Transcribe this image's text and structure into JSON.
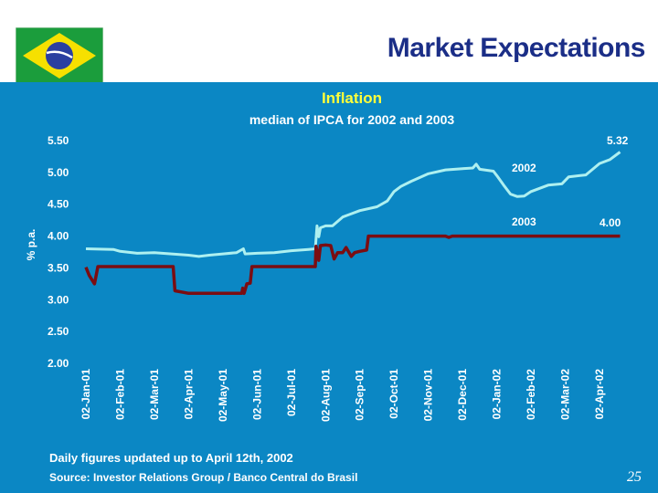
{
  "slide": {
    "title": "Market Expectations",
    "subtitle": "Inflation",
    "caption": "median of IPCA for 2002 and 2003",
    "note": "Daily figures updated up to April 12th, 2002",
    "source": "Source: Investor Relations Group / Banco Central do Brasil",
    "page_number": "25",
    "flag_icon": "brazil-flag-icon"
  },
  "colors": {
    "background": "#0b87c4",
    "series_2002": "#aef0f0",
    "series_2003": "#7b0d12",
    "title": "#1b2e87",
    "subtitle": "#ffff3a"
  },
  "chart_data": {
    "type": "line",
    "title": "Inflation",
    "subtitle": "median of IPCA for 2002 and 2003",
    "ylabel": "% p.a.",
    "xlabel": "",
    "ylim": [
      2.0,
      5.5
    ],
    "y_ticks": [
      "5.50",
      "5.00",
      "4.50",
      "4.00",
      "3.50",
      "3.00",
      "2.50",
      "2.00"
    ],
    "categories": [
      "02-Jan-01",
      "02-Feb-01",
      "02-Mar-01",
      "02-Apr-01",
      "02-May-01",
      "02-Jun-01",
      "02-Jul-01",
      "02-Aug-01",
      "02-Sep-01",
      "02-Oct-01",
      "02-Nov-01",
      "02-Dec-01",
      "02-Jan-02",
      "02-Feb-02",
      "02-Mar-02",
      "02-Apr-02"
    ],
    "grid": false,
    "series": [
      {
        "name": "2002",
        "end_label": "5.32",
        "points": [
          [
            0.0,
            3.8
          ],
          [
            0.8,
            3.79
          ],
          [
            1.0,
            3.76
          ],
          [
            1.5,
            3.73
          ],
          [
            2.0,
            3.74
          ],
          [
            2.5,
            3.72
          ],
          [
            3.0,
            3.7
          ],
          [
            3.3,
            3.68
          ],
          [
            3.6,
            3.7
          ],
          [
            4.0,
            3.72
          ],
          [
            4.4,
            3.74
          ],
          [
            4.6,
            3.8
          ],
          [
            4.65,
            3.72
          ],
          [
            5.0,
            3.73
          ],
          [
            5.5,
            3.74
          ],
          [
            6.0,
            3.77
          ],
          [
            6.5,
            3.79
          ],
          [
            6.7,
            3.8
          ],
          [
            6.75,
            4.16
          ],
          [
            6.8,
            3.99
          ],
          [
            6.85,
            4.13
          ],
          [
            7.0,
            4.16
          ],
          [
            7.2,
            4.16
          ],
          [
            7.5,
            4.3
          ],
          [
            8.0,
            4.4
          ],
          [
            8.5,
            4.46
          ],
          [
            8.8,
            4.55
          ],
          [
            9.0,
            4.7
          ],
          [
            9.2,
            4.78
          ],
          [
            9.5,
            4.86
          ],
          [
            10.0,
            4.98
          ],
          [
            10.5,
            5.04
          ],
          [
            11.0,
            5.06
          ],
          [
            11.3,
            5.07
          ],
          [
            11.4,
            5.13
          ],
          [
            11.5,
            5.05
          ],
          [
            11.9,
            5.02
          ],
          [
            12.0,
            4.95
          ],
          [
            12.2,
            4.8
          ],
          [
            12.4,
            4.66
          ],
          [
            12.6,
            4.62
          ],
          [
            12.8,
            4.63
          ],
          [
            13.0,
            4.7
          ],
          [
            13.5,
            4.8
          ],
          [
            13.9,
            4.82
          ],
          [
            14.1,
            4.93
          ],
          [
            14.6,
            4.96
          ],
          [
            14.8,
            5.05
          ],
          [
            15.0,
            5.14
          ],
          [
            15.3,
            5.2
          ],
          [
            15.6,
            5.32
          ]
        ]
      },
      {
        "name": "2003",
        "end_label": "4.00",
        "points": [
          [
            0.0,
            3.51
          ],
          [
            0.1,
            3.38
          ],
          [
            0.25,
            3.25
          ],
          [
            0.35,
            3.52
          ],
          [
            1.0,
            3.52
          ],
          [
            2.0,
            3.52
          ],
          [
            2.55,
            3.52
          ],
          [
            2.6,
            3.14
          ],
          [
            3.0,
            3.1
          ],
          [
            4.0,
            3.1
          ],
          [
            4.55,
            3.1
          ],
          [
            4.58,
            3.18
          ],
          [
            4.62,
            3.1
          ],
          [
            4.7,
            3.25
          ],
          [
            4.8,
            3.26
          ],
          [
            4.85,
            3.52
          ],
          [
            5.5,
            3.52
          ],
          [
            6.0,
            3.52
          ],
          [
            6.5,
            3.52
          ],
          [
            6.7,
            3.52
          ],
          [
            6.72,
            3.84
          ],
          [
            6.8,
            3.62
          ],
          [
            6.85,
            3.85
          ],
          [
            7.0,
            3.86
          ],
          [
            7.15,
            3.85
          ],
          [
            7.25,
            3.64
          ],
          [
            7.35,
            3.74
          ],
          [
            7.5,
            3.74
          ],
          [
            7.6,
            3.82
          ],
          [
            7.75,
            3.68
          ],
          [
            7.85,
            3.74
          ],
          [
            8.0,
            3.76
          ],
          [
            8.2,
            3.78
          ],
          [
            8.25,
            4.0
          ],
          [
            9.0,
            4.0
          ],
          [
            10.0,
            4.0
          ],
          [
            10.5,
            4.0
          ],
          [
            10.6,
            3.98
          ],
          [
            10.7,
            4.0
          ],
          [
            11.5,
            4.0
          ],
          [
            12.0,
            4.0
          ],
          [
            13.0,
            4.0
          ],
          [
            14.0,
            4.0
          ],
          [
            15.0,
            4.0
          ],
          [
            15.6,
            4.0
          ]
        ]
      }
    ]
  }
}
